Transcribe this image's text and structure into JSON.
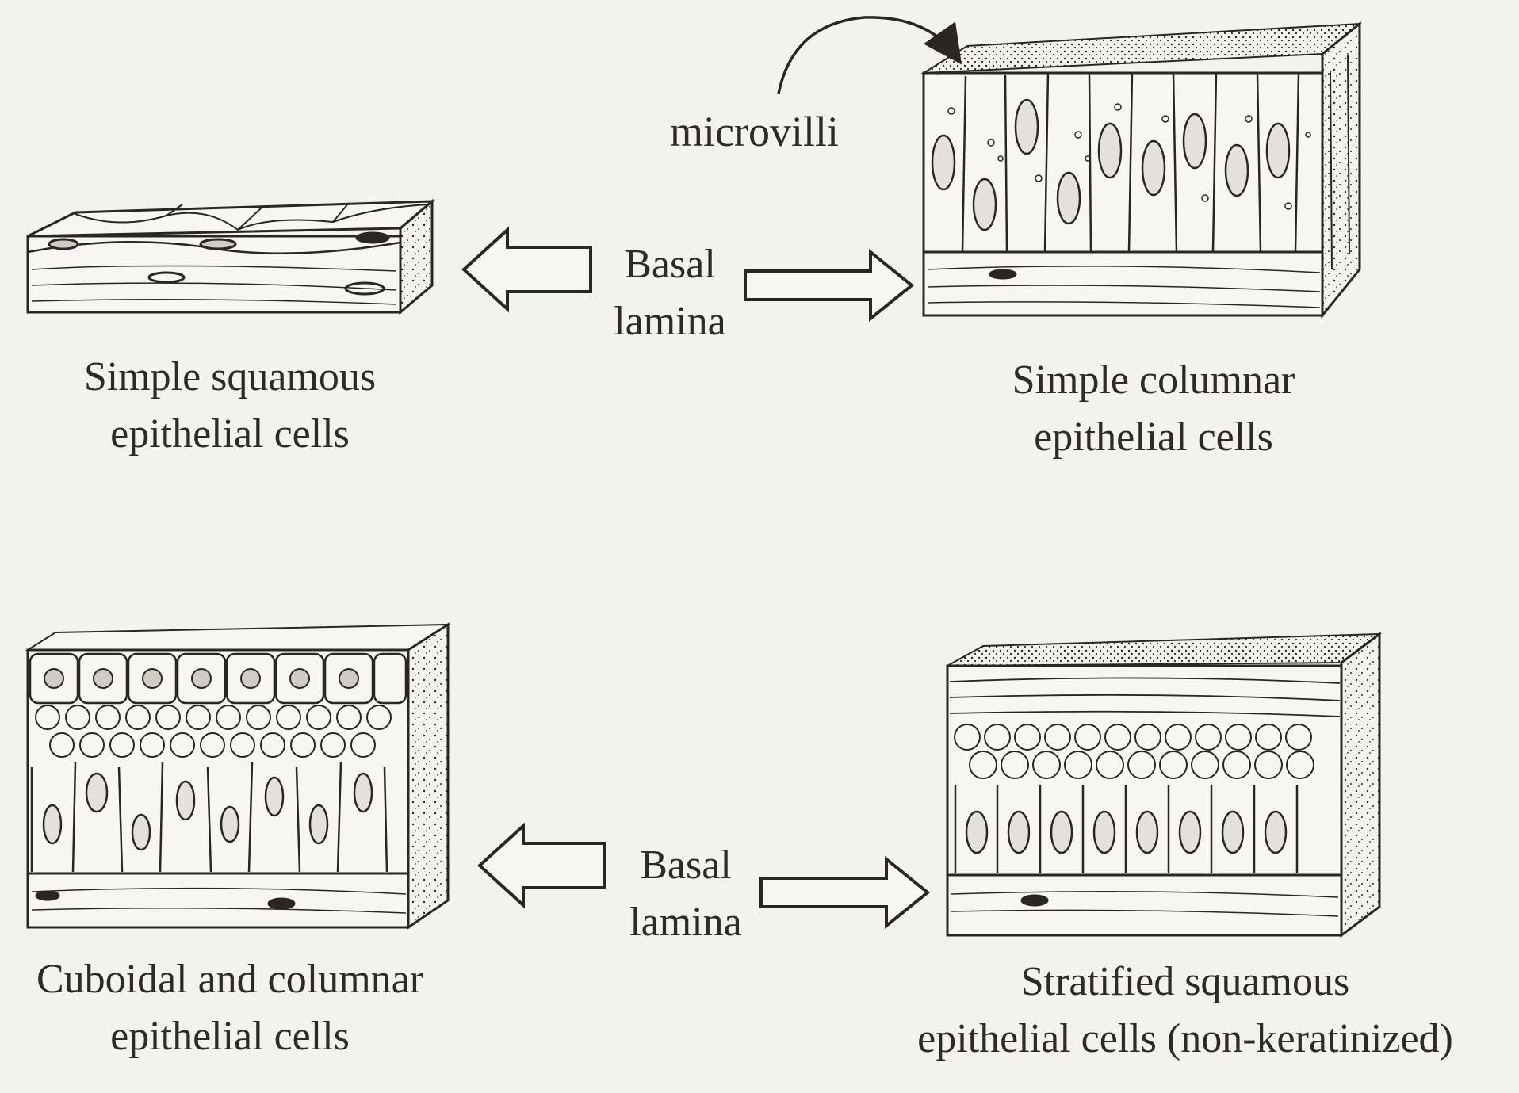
{
  "diagram": {
    "annotation_microvilli": "microvilli",
    "basal_lamina_top": [
      "Basal",
      "lamina"
    ],
    "basal_lamina_bottom": [
      "Basal",
      "lamina"
    ],
    "panels": [
      {
        "id": "simple-squamous",
        "caption": [
          "Simple squamous",
          "epithelial cells"
        ]
      },
      {
        "id": "simple-columnar",
        "caption": [
          "Simple columnar",
          "epithelial cells"
        ]
      },
      {
        "id": "cuboidal-columnar",
        "caption": [
          "Cuboidal and columnar",
          "epithelial cells"
        ]
      },
      {
        "id": "stratified-squamous",
        "caption": [
          "Stratified squamous",
          "epithelial cells (non-keratinized)"
        ]
      }
    ],
    "colors": {
      "ink": "#2b2623",
      "paper": "#f3f2ef"
    }
  }
}
